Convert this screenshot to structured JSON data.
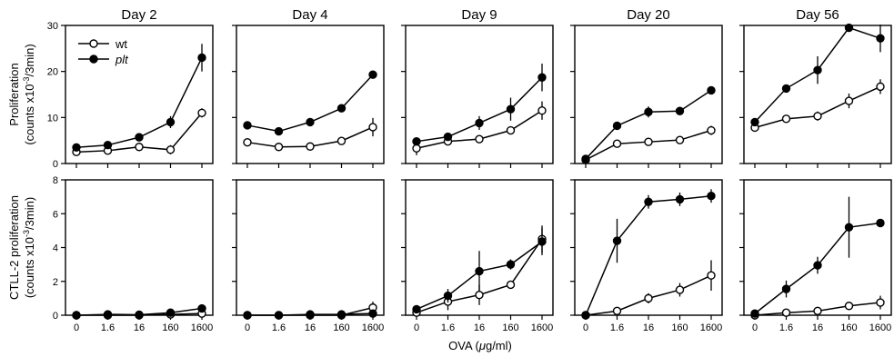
{
  "chart_data": {
    "type": "line",
    "layout": "2 rows x 5 columns of line panels",
    "x_categories": [
      "0",
      "1.6",
      "16",
      "160",
      "1600"
    ],
    "xlabel": "OVA (μg/ml)",
    "xlabel_parts": {
      "prefix": "OVA (",
      "mu": "μ",
      "suffix": "g/ml)"
    },
    "columns": [
      "Day 2",
      "Day 4",
      "Day 9",
      "Day 20",
      "Day 56"
    ],
    "legend": {
      "placement": "top-left of first panel",
      "entries": [
        "wt",
        "plt"
      ]
    },
    "series_styles": {
      "wt": "open circle",
      "plt": "filled circle"
    },
    "rows": [
      {
        "ylabel_line1": "Proliferation",
        "ylabel_line2": "(counts x10",
        "ylabel_sup": "-3",
        "ylabel_line2_end": "/3min)",
        "ylim": [
          0,
          30
        ],
        "yticks": [
          0,
          10,
          20,
          30
        ],
        "panels": [
          {
            "title": "Day 2",
            "series": [
              {
                "name": "wt",
                "values": [
                  2.5,
                  2.8,
                  3.6,
                  3.0,
                  11.0
                ],
                "errors": [
                  0.3,
                  0.3,
                  0.4,
                  1.0,
                  1.0
                ]
              },
              {
                "name": "plt",
                "values": [
                  3.5,
                  4.0,
                  5.7,
                  9.0,
                  23.0
                ],
                "errors": [
                  0.3,
                  0.3,
                  0.4,
                  1.3,
                  3.0
                ]
              }
            ]
          },
          {
            "title": "Day 4",
            "series": [
              {
                "name": "wt",
                "values": [
                  4.6,
                  3.6,
                  3.7,
                  4.9,
                  7.9
                ],
                "errors": [
                  0.3,
                  0.3,
                  0.3,
                  0.3,
                  2.0
                ]
              },
              {
                "name": "plt",
                "values": [
                  8.3,
                  7.0,
                  9.0,
                  12.0,
                  19.3
                ],
                "errors": [
                  0.3,
                  0.3,
                  0.3,
                  0.3,
                  0.3
                ]
              }
            ]
          },
          {
            "title": "Day 9",
            "series": [
              {
                "name": "wt",
                "values": [
                  3.3,
                  4.8,
                  5.3,
                  7.2,
                  11.5
                ],
                "errors": [
                  1.5,
                  0.8,
                  0.5,
                  0.5,
                  2.0
                ]
              },
              {
                "name": "plt",
                "values": [
                  4.8,
                  5.8,
                  8.8,
                  11.8,
                  18.7
                ],
                "errors": [
                  0.5,
                  0.5,
                  1.5,
                  2.5,
                  3.0
                ]
              }
            ]
          },
          {
            "title": "Day 20",
            "series": [
              {
                "name": "wt",
                "values": [
                  0.8,
                  4.3,
                  4.7,
                  5.1,
                  7.2
                ],
                "errors": [
                  0.3,
                  0.3,
                  0.3,
                  0.3,
                  1.0
                ]
              },
              {
                "name": "plt",
                "values": [
                  1.0,
                  8.2,
                  11.2,
                  11.4,
                  15.9
                ],
                "errors": [
                  0.3,
                  0.4,
                  1.2,
                  0.5,
                  0.8
                ]
              }
            ]
          },
          {
            "title": "Day 56",
            "series": [
              {
                "name": "wt",
                "values": [
                  7.8,
                  9.7,
                  10.3,
                  13.6,
                  16.7
                ],
                "errors": [
                  0.5,
                  0.5,
                  1.0,
                  1.6,
                  1.6
                ]
              },
              {
                "name": "plt",
                "values": [
                  9.0,
                  16.3,
                  20.3,
                  29.5,
                  27.2
                ],
                "errors": [
                  0.5,
                  0.8,
                  3.0,
                  0.5,
                  3.0
                ]
              }
            ]
          }
        ]
      },
      {
        "ylabel_line1": "CTLL-2 proliferation",
        "ylabel_line2": "(counts x10",
        "ylabel_sup": "-3",
        "ylabel_line2_end": "/3min)",
        "ylim": [
          0,
          8
        ],
        "yticks": [
          0,
          2,
          4,
          6,
          8
        ],
        "panels": [
          {
            "title": "Day 2",
            "series": [
              {
                "name": "wt",
                "values": [
                  0.0,
                  0.0,
                  0.0,
                  0.05,
                  0.1
                ],
                "errors": [
                  0.05,
                  0.05,
                  0.05,
                  0.05,
                  0.08
                ]
              },
              {
                "name": "plt",
                "values": [
                  0.0,
                  0.05,
                  0.03,
                  0.15,
                  0.4
                ],
                "errors": [
                  0.05,
                  0.05,
                  0.05,
                  0.1,
                  0.1
                ]
              }
            ]
          },
          {
            "title": "Day 4",
            "series": [
              {
                "name": "wt",
                "values": [
                  0.0,
                  0.0,
                  0.0,
                  0.0,
                  0.45
                ],
                "errors": [
                  0.05,
                  0.05,
                  0.05,
                  0.05,
                  0.35
                ]
              },
              {
                "name": "plt",
                "values": [
                  0.0,
                  0.0,
                  0.05,
                  0.05,
                  0.1
                ],
                "errors": [
                  0.05,
                  0.05,
                  0.05,
                  0.05,
                  0.1
                ]
              }
            ]
          },
          {
            "title": "Day 9",
            "series": [
              {
                "name": "wt",
                "values": [
                  0.15,
                  0.8,
                  1.2,
                  1.8,
                  4.5
                ],
                "errors": [
                  0.2,
                  0.5,
                  0.6,
                  0.2,
                  0.8
                ]
              },
              {
                "name": "plt",
                "values": [
                  0.35,
                  1.15,
                  2.6,
                  3.0,
                  4.35
                ],
                "errors": [
                  0.15,
                  0.4,
                  1.2,
                  0.3,
                  0.8
                ]
              }
            ]
          },
          {
            "title": "Day 20",
            "series": [
              {
                "name": "wt",
                "values": [
                  0.0,
                  0.25,
                  1.0,
                  1.5,
                  2.35
                ],
                "errors": [
                  0.05,
                  0.1,
                  0.3,
                  0.4,
                  0.9
                ]
              },
              {
                "name": "plt",
                "values": [
                  0.0,
                  4.4,
                  6.7,
                  6.85,
                  7.05
                ],
                "errors": [
                  0.05,
                  1.3,
                  0.4,
                  0.4,
                  0.4
                ]
              }
            ]
          },
          {
            "title": "Day 56",
            "series": [
              {
                "name": "wt",
                "values": [
                  0.0,
                  0.15,
                  0.25,
                  0.55,
                  0.75
                ],
                "errors": [
                  0.05,
                  0.1,
                  0.1,
                  0.1,
                  0.4
                ]
              },
              {
                "name": "plt",
                "values": [
                  0.1,
                  1.55,
                  2.95,
                  5.2,
                  5.45
                ],
                "errors": [
                  0.1,
                  0.5,
                  0.5,
                  1.8,
                  0.15
                ]
              }
            ]
          }
        ]
      }
    ]
  }
}
